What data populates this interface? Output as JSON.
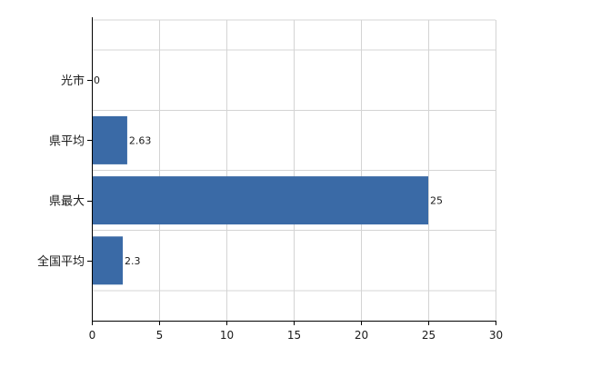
{
  "chart_data": {
    "type": "bar",
    "orientation": "horizontal",
    "categories": [
      "光市",
      "県平均",
      "県最大",
      "全国平均"
    ],
    "values": [
      0,
      2.63,
      25,
      2.3
    ],
    "value_labels": [
      "0",
      "2.63",
      "25",
      "2.3"
    ],
    "xlim": [
      0,
      30
    ],
    "xticks": [
      "0",
      "5",
      "10",
      "15",
      "20",
      "25",
      "30"
    ],
    "grid": true,
    "bar_color": "#3a6aa6",
    "grid_color": "#d4d4d4",
    "axis_color": "#000000"
  }
}
